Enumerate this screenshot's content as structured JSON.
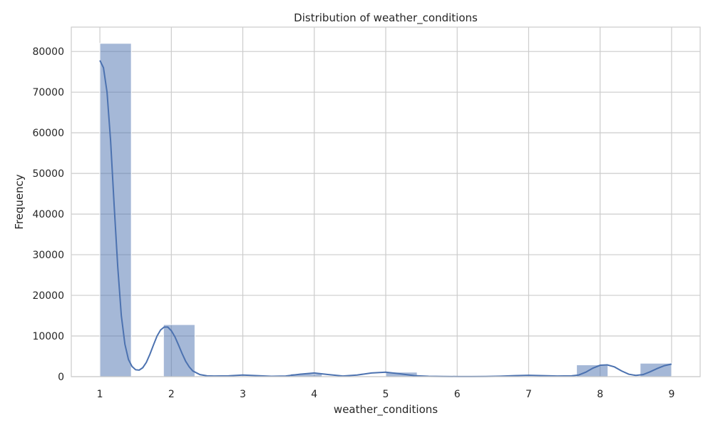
{
  "chart_data": {
    "type": "bar",
    "title": "Distribution of weather_conditions",
    "xlabel": "weather_conditions",
    "ylabel": "Frequency",
    "xlim": [
      0.6,
      9.4
    ],
    "ylim": [
      0,
      86000
    ],
    "grid": true,
    "x_ticks": [
      1,
      2,
      3,
      4,
      5,
      6,
      7,
      8,
      9
    ],
    "x_tick_labels": [
      "1",
      "2",
      "3",
      "4",
      "5",
      "6",
      "7",
      "8",
      "9"
    ],
    "y_ticks": [
      0,
      10000,
      20000,
      30000,
      40000,
      50000,
      60000,
      70000,
      80000
    ],
    "y_tick_labels": [
      "0",
      "10000",
      "20000",
      "30000",
      "40000",
      "50000",
      "60000",
      "70000",
      "80000"
    ],
    "bins": [
      {
        "x0": 1.0,
        "x1": 1.44,
        "count": 82000
      },
      {
        "x0": 1.44,
        "x1": 1.89,
        "count": 0
      },
      {
        "x0": 1.89,
        "x1": 2.33,
        "count": 12800
      },
      {
        "x0": 2.33,
        "x1": 2.78,
        "count": 0
      },
      {
        "x0": 2.78,
        "x1": 3.22,
        "count": 0
      },
      {
        "x0": 3.22,
        "x1": 3.67,
        "count": 0
      },
      {
        "x0": 3.67,
        "x1": 4.11,
        "count": 700
      },
      {
        "x0": 4.11,
        "x1": 4.56,
        "count": 0
      },
      {
        "x0": 4.56,
        "x1": 5.0,
        "count": 0
      },
      {
        "x0": 5.0,
        "x1": 5.44,
        "count": 1100
      },
      {
        "x0": 5.44,
        "x1": 5.89,
        "count": 0
      },
      {
        "x0": 5.89,
        "x1": 6.33,
        "count": 0
      },
      {
        "x0": 6.33,
        "x1": 6.78,
        "count": 0
      },
      {
        "x0": 6.78,
        "x1": 7.22,
        "count": 0
      },
      {
        "x0": 7.22,
        "x1": 7.67,
        "count": 0
      },
      {
        "x0": 7.67,
        "x1": 8.11,
        "count": 2900
      },
      {
        "x0": 8.11,
        "x1": 8.56,
        "count": 0
      },
      {
        "x0": 8.56,
        "x1": 9.0,
        "count": 3300
      }
    ],
    "kde": {
      "x": [
        1.0,
        1.05,
        1.1,
        1.15,
        1.2,
        1.25,
        1.3,
        1.35,
        1.4,
        1.45,
        1.5,
        1.55,
        1.6,
        1.65,
        1.7,
        1.75,
        1.8,
        1.85,
        1.9,
        1.95,
        2.0,
        2.05,
        2.1,
        2.15,
        2.2,
        2.25,
        2.3,
        2.4,
        2.5,
        2.6,
        2.8,
        3.0,
        3.2,
        3.4,
        3.6,
        3.8,
        4.0,
        4.2,
        4.4,
        4.6,
        4.8,
        5.0,
        5.2,
        5.4,
        5.6,
        5.8,
        6.0,
        6.2,
        6.4,
        6.6,
        6.8,
        7.0,
        7.2,
        7.4,
        7.6,
        7.7,
        7.8,
        7.9,
        8.0,
        8.1,
        8.2,
        8.3,
        8.4,
        8.5,
        8.6,
        8.7,
        8.8,
        8.9,
        9.0
      ],
      "y": [
        77800,
        76000,
        70000,
        58000,
        42000,
        27000,
        15000,
        8000,
        4200,
        2500,
        1700,
        1600,
        2200,
        3500,
        5500,
        7800,
        10000,
        11500,
        12200,
        12200,
        11300,
        9800,
        7800,
        5700,
        3800,
        2400,
        1400,
        500,
        200,
        150,
        200,
        400,
        250,
        80,
        150,
        600,
        900,
        500,
        150,
        400,
        900,
        1100,
        700,
        250,
        80,
        40,
        30,
        30,
        50,
        120,
        250,
        320,
        250,
        150,
        200,
        400,
        1100,
        2100,
        2800,
        2900,
        2400,
        1400,
        600,
        300,
        500,
        1200,
        2000,
        2700,
        3100
      ]
    },
    "colors": {
      "bar_fill": "#4c72b0",
      "bar_fill_opacity": 0.5,
      "kde_line": "#4c72b0"
    }
  }
}
